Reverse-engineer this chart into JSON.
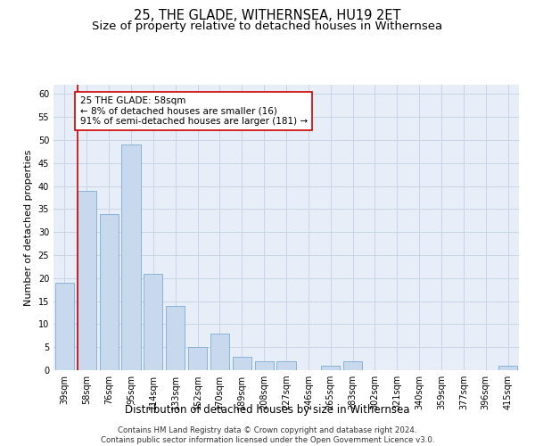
{
  "title": "25, THE GLADE, WITHERNSEA, HU19 2ET",
  "subtitle": "Size of property relative to detached houses in Withernsea",
  "xlabel": "Distribution of detached houses by size in Withernsea",
  "ylabel": "Number of detached properties",
  "categories": [
    "39sqm",
    "58sqm",
    "76sqm",
    "95sqm",
    "114sqm",
    "133sqm",
    "152sqm",
    "170sqm",
    "189sqm",
    "208sqm",
    "227sqm",
    "246sqm",
    "265sqm",
    "283sqm",
    "302sqm",
    "321sqm",
    "340sqm",
    "359sqm",
    "377sqm",
    "396sqm",
    "415sqm"
  ],
  "values": [
    19,
    39,
    34,
    49,
    21,
    14,
    5,
    8,
    3,
    2,
    2,
    0,
    1,
    2,
    0,
    0,
    0,
    0,
    0,
    0,
    1
  ],
  "bar_color": "#c8d9ee",
  "bar_edge_color": "#7badd4",
  "highlight_index": 1,
  "highlight_line_color": "#cc0000",
  "annotation_box_text": "25 THE GLADE: 58sqm\n← 8% of detached houses are smaller (16)\n91% of semi-detached houses are larger (181) →",
  "annotation_box_color": "#ffffff",
  "annotation_box_edge_color": "#cc0000",
  "ylim": [
    0,
    62
  ],
  "yticks": [
    0,
    5,
    10,
    15,
    20,
    25,
    30,
    35,
    40,
    45,
    50,
    55,
    60
  ],
  "grid_color": "#c8d4e8",
  "bg_color": "#e8eef8",
  "footnote": "Contains HM Land Registry data © Crown copyright and database right 2024.\nContains public sector information licensed under the Open Government Licence v3.0.",
  "title_fontsize": 10.5,
  "subtitle_fontsize": 9.5,
  "xlabel_fontsize": 8.5,
  "ylabel_fontsize": 8,
  "tick_fontsize": 7,
  "annotation_fontsize": 7.5,
  "footnote_fontsize": 6.2
}
